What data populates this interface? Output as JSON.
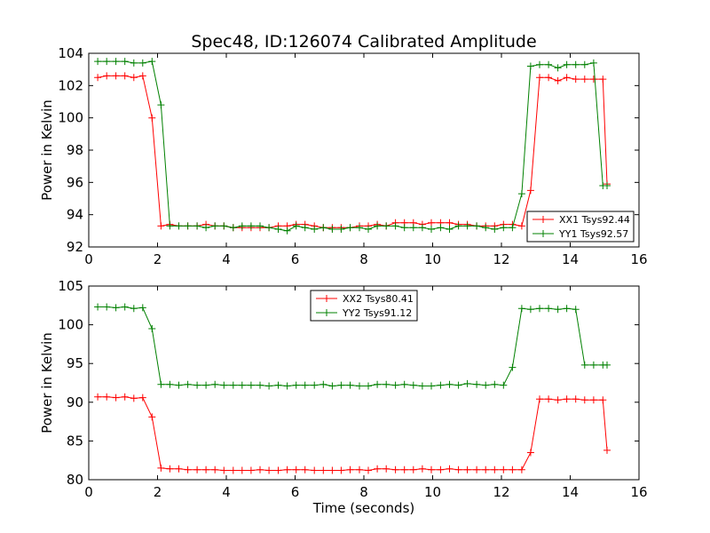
{
  "chart_data": [
    {
      "type": "line",
      "title": "Spec48, ID:126074 Calibrated Amplitude",
      "xlabel": "",
      "ylabel": "Power in Kelvin",
      "xlim": [
        0,
        16
      ],
      "ylim": [
        92,
        104
      ],
      "xticks": [
        0,
        2,
        4,
        6,
        8,
        10,
        12,
        14,
        16
      ],
      "yticks": [
        92,
        94,
        96,
        98,
        100,
        102,
        104
      ],
      "legend_position": "lower-right",
      "grid": false,
      "x": [
        0.26,
        0.52,
        0.79,
        1.05,
        1.31,
        1.57,
        1.84,
        2.1,
        2.36,
        2.62,
        2.88,
        3.15,
        3.41,
        3.67,
        3.93,
        4.2,
        4.46,
        4.72,
        4.98,
        5.24,
        5.51,
        5.77,
        6.03,
        6.29,
        6.56,
        6.82,
        7.08,
        7.34,
        7.6,
        7.87,
        8.13,
        8.39,
        8.65,
        8.92,
        9.18,
        9.44,
        9.7,
        9.96,
        10.23,
        10.49,
        10.75,
        11.01,
        11.28,
        11.54,
        11.8,
        12.06,
        12.32,
        12.59,
        12.85,
        13.11,
        13.37,
        13.64,
        13.9,
        14.16,
        14.42,
        14.68,
        14.95,
        15.07
      ],
      "series": [
        {
          "name": "XX1 Tsys92.44",
          "color": "#ff0000",
          "values": [
            102.5,
            102.6,
            102.6,
            102.6,
            102.5,
            102.6,
            100.0,
            93.3,
            93.4,
            93.3,
            93.3,
            93.3,
            93.4,
            93.3,
            93.3,
            93.2,
            93.2,
            93.2,
            93.2,
            93.2,
            93.3,
            93.3,
            93.4,
            93.4,
            93.3,
            93.2,
            93.2,
            93.2,
            93.2,
            93.3,
            93.3,
            93.4,
            93.3,
            93.5,
            93.5,
            93.5,
            93.4,
            93.5,
            93.5,
            93.5,
            93.4,
            93.4,
            93.3,
            93.3,
            93.3,
            93.4,
            93.4,
            93.3,
            95.5,
            102.5,
            102.5,
            102.3,
            102.5,
            102.4,
            102.4,
            102.4,
            102.4,
            95.9
          ]
        },
        {
          "name": "YY1 Tsys92.57",
          "color": "#008000",
          "values": [
            103.5,
            103.5,
            103.5,
            103.5,
            103.4,
            103.4,
            103.5,
            100.8,
            93.3,
            93.3,
            93.3,
            93.3,
            93.2,
            93.3,
            93.3,
            93.2,
            93.3,
            93.3,
            93.3,
            93.2,
            93.1,
            93.0,
            93.3,
            93.2,
            93.1,
            93.2,
            93.1,
            93.1,
            93.2,
            93.2,
            93.1,
            93.3,
            93.3,
            93.3,
            93.2,
            93.2,
            93.2,
            93.1,
            93.2,
            93.1,
            93.3,
            93.3,
            93.3,
            93.2,
            93.1,
            93.2,
            93.2,
            95.3,
            103.2,
            103.3,
            103.3,
            103.1,
            103.3,
            103.3,
            103.3,
            103.4,
            95.8,
            95.8
          ]
        }
      ]
    },
    {
      "type": "line",
      "title": "",
      "xlabel": "Time (seconds)",
      "ylabel": "Power in Kelvin",
      "xlim": [
        0,
        16
      ],
      "ylim": [
        80,
        105
      ],
      "xticks": [
        0,
        2,
        4,
        6,
        8,
        10,
        12,
        14,
        16
      ],
      "yticks": [
        80,
        85,
        90,
        95,
        100,
        105
      ],
      "legend_position": "upper-center",
      "grid": false,
      "x": [
        0.26,
        0.52,
        0.79,
        1.05,
        1.31,
        1.57,
        1.84,
        2.1,
        2.36,
        2.62,
        2.88,
        3.15,
        3.41,
        3.67,
        3.93,
        4.2,
        4.46,
        4.72,
        4.98,
        5.24,
        5.51,
        5.77,
        6.03,
        6.29,
        6.56,
        6.82,
        7.08,
        7.34,
        7.6,
        7.87,
        8.13,
        8.39,
        8.65,
        8.92,
        9.18,
        9.44,
        9.7,
        9.96,
        10.23,
        10.49,
        10.75,
        11.01,
        11.28,
        11.54,
        11.8,
        12.06,
        12.32,
        12.59,
        12.85,
        13.11,
        13.37,
        13.64,
        13.9,
        14.16,
        14.42,
        14.68,
        14.95,
        15.07
      ],
      "series": [
        {
          "name": "XX2 Tsys80.41",
          "color": "#ff0000",
          "values": [
            90.7,
            90.7,
            90.6,
            90.7,
            90.5,
            90.6,
            88.1,
            81.5,
            81.4,
            81.4,
            81.3,
            81.3,
            81.3,
            81.3,
            81.2,
            81.2,
            81.2,
            81.2,
            81.3,
            81.2,
            81.2,
            81.3,
            81.3,
            81.3,
            81.2,
            81.2,
            81.2,
            81.2,
            81.3,
            81.3,
            81.2,
            81.4,
            81.4,
            81.3,
            81.3,
            81.3,
            81.4,
            81.3,
            81.3,
            81.4,
            81.3,
            81.3,
            81.3,
            81.3,
            81.3,
            81.3,
            81.3,
            81.3,
            83.5,
            90.4,
            90.4,
            90.3,
            90.4,
            90.4,
            90.3,
            90.3,
            90.3,
            83.8
          ]
        },
        {
          "name": "YY2 Tsys91.12",
          "color": "#008000",
          "values": [
            102.3,
            102.3,
            102.2,
            102.3,
            102.1,
            102.2,
            99.5,
            92.3,
            92.3,
            92.2,
            92.3,
            92.2,
            92.2,
            92.3,
            92.2,
            92.2,
            92.2,
            92.2,
            92.2,
            92.1,
            92.2,
            92.1,
            92.2,
            92.2,
            92.2,
            92.3,
            92.1,
            92.2,
            92.2,
            92.1,
            92.1,
            92.3,
            92.3,
            92.2,
            92.3,
            92.2,
            92.1,
            92.1,
            92.2,
            92.3,
            92.2,
            92.4,
            92.3,
            92.2,
            92.3,
            92.2,
            94.5,
            102.1,
            102.0,
            102.1,
            102.1,
            102.0,
            102.1,
            102.0,
            94.8,
            94.8,
            94.8,
            94.8
          ]
        }
      ]
    }
  ]
}
